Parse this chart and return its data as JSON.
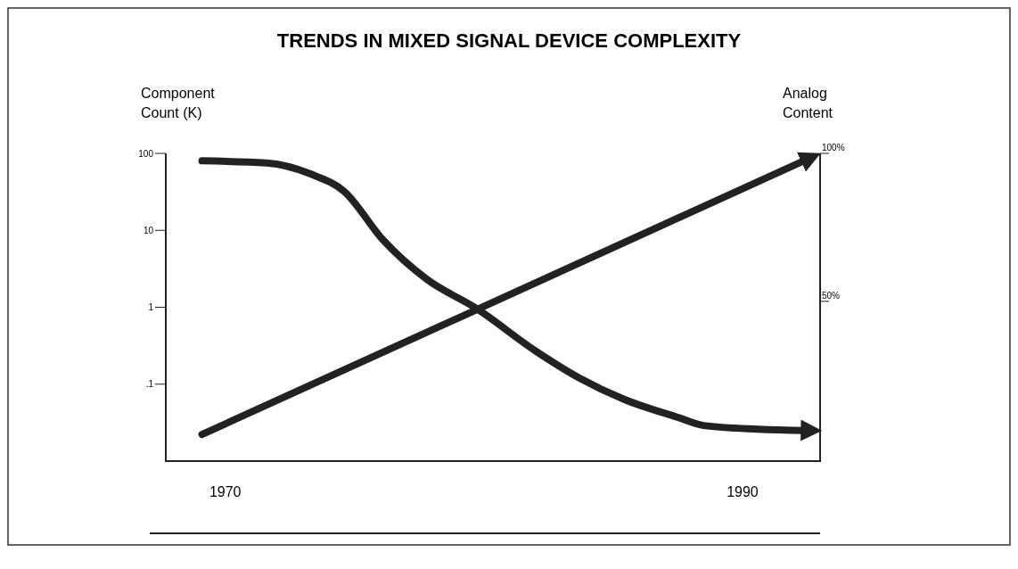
{
  "chart_data": {
    "type": "line",
    "title": "TRENDS IN MIXED SIGNAL DEVICE COMPLEXITY",
    "ylabel": "Component Count (K)",
    "y2label": "Analog Content",
    "log": "y",
    "xlim": [
      1967.7,
      1993
    ],
    "xticks": [
      1970,
      1990
    ],
    "ylim": [
      0.01,
      100
    ],
    "yticks": [
      100,
      10,
      1,
      {
        "value": 0.1,
        "label": ".1"
      }
    ],
    "y2lim": [
      -4,
      100
    ],
    "y2ticks": [
      {
        "value": 100,
        "label": "100%"
      },
      {
        "value": 50,
        "label": "50%"
      }
    ],
    "series": [
      {
        "color": "#222222",
        "axis": "y",
        "x": [
          1969.1,
          1971.6,
          1973.3,
          1974.6,
          1976.1,
          1977.8,
          1979.7,
          1982.0,
          1983.7,
          1985.4,
          1987.5,
          1988.5,
          1990.6,
          1992.5
        ],
        "values": [
          80,
          75,
          54,
          32,
          7.5,
          2.3,
          0.97,
          0.27,
          0.12,
          0.064,
          0.037,
          0.029,
          0.026,
          0.025
        ]
      },
      {
        "color": "#222222",
        "axis": "y2",
        "x": [
          1969.1,
          1992.5
        ],
        "values": [
          5,
          98
        ]
      }
    ]
  }
}
